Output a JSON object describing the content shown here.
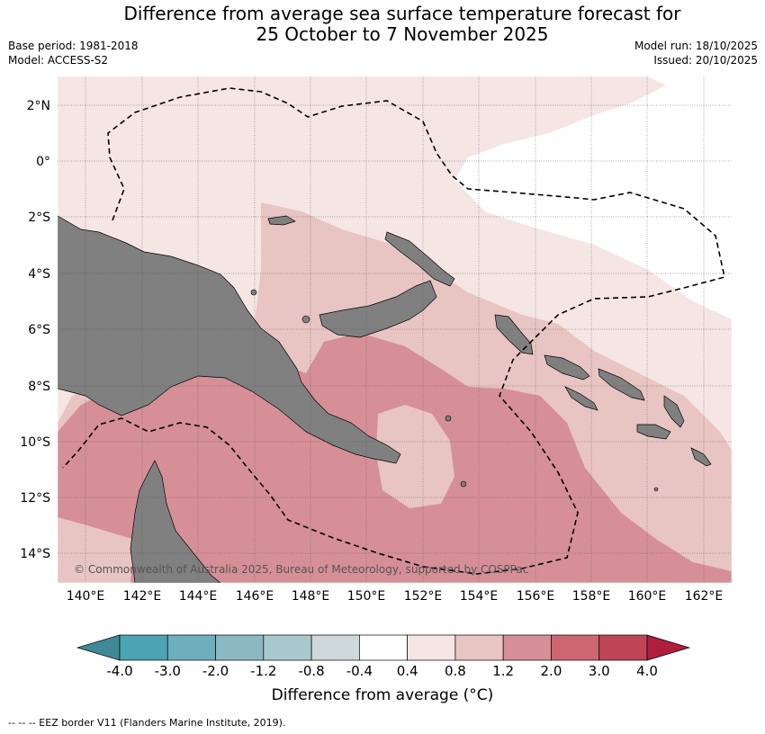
{
  "title_line1": "Difference from average sea surface temperature forecast for",
  "title_line2": "25 October to 7 November 2025",
  "meta": {
    "base_period": "Base period: 1981-2018",
    "model": "Model: ACCESS-S2",
    "model_run": "Model run: 18/10/2025",
    "issued": "Issued: 20/10/2025"
  },
  "lat_labels": [
    "2°N",
    "0°",
    "2°S",
    "4°S",
    "6°S",
    "8°S",
    "10°S",
    "12°S",
    "14°S"
  ],
  "lon_labels": [
    "140°E",
    "142°E",
    "144°E",
    "146°E",
    "148°E",
    "150°E",
    "152°E",
    "154°E",
    "156°E",
    "158°E",
    "160°E",
    "162°E"
  ],
  "copyright": "© Commonwealth of Australia 2025, Bureau of Meteorology, supported by COSPPac",
  "colorbar": {
    "ticks": [
      "-4.0",
      "-3.0",
      "-2.0",
      "-1.2",
      "-0.8",
      "-0.4",
      "0.4",
      "0.8",
      "1.2",
      "2.0",
      "3.0",
      "4.0"
    ],
    "colors": [
      "#3f8a96",
      "#4ba3b4",
      "#6eafbe",
      "#8bb8c3",
      "#a9c8cc",
      "#d0d9da",
      "#ffffff",
      "#f5e6e4",
      "#e8c5c2",
      "#d68f97",
      "#cc6670",
      "#bf4554",
      "#b01e3d"
    ],
    "title": "Difference from average (°C)"
  },
  "legend_footer": "--  --  -- EEZ border V11 (Flanders Marine Institute, 2019).",
  "colors": {
    "land": "#808080",
    "anom_0_4_0_8": "#f5e6e4",
    "anom_0_8_1_2": "#e8c5c2",
    "anom_1_2_2_0": "#d68f97",
    "below_0_4": "#ffffff"
  }
}
